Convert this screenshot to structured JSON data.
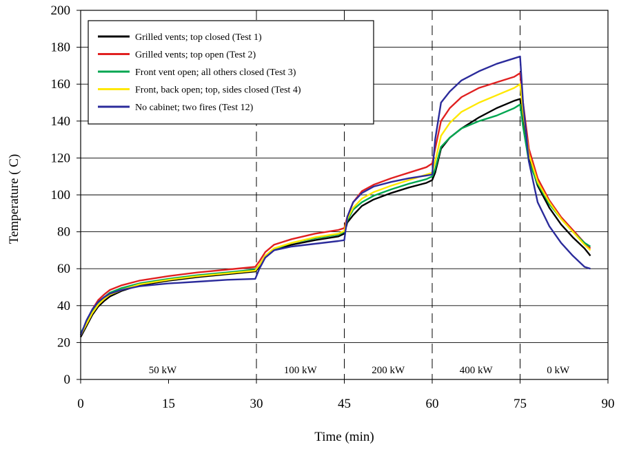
{
  "chart_data": {
    "type": "line",
    "title": "",
    "xlabel": "Time (min)",
    "ylabel": "Temperature ( C)",
    "xlim": [
      0,
      90
    ],
    "ylim": [
      0,
      200
    ],
    "xticks": [
      0,
      15,
      30,
      45,
      60,
      75,
      90
    ],
    "yticks": [
      0,
      20,
      40,
      60,
      80,
      100,
      120,
      140,
      160,
      180,
      200
    ],
    "grid": "horizontal",
    "legend": "top-left",
    "phase_dividers": [
      30,
      45,
      60,
      75
    ],
    "phase_labels": [
      {
        "text": "50 kW",
        "x": 14
      },
      {
        "text": "100 kW",
        "x": 37.5
      },
      {
        "text": "200 kW",
        "x": 52.5
      },
      {
        "text": "400 kW",
        "x": 67.5
      },
      {
        "text": "0 kW",
        "x": 81.5
      }
    ],
    "series": [
      {
        "name": "Grilled vents; top closed (Test 1)",
        "color": "#000000",
        "points": [
          [
            0,
            23
          ],
          [
            1,
            29
          ],
          [
            2,
            35
          ],
          [
            3,
            39.5
          ],
          [
            4,
            42.5
          ],
          [
            5,
            45
          ],
          [
            7,
            48
          ],
          [
            10,
            51
          ],
          [
            15,
            53.5
          ],
          [
            20,
            55.5
          ],
          [
            25,
            57
          ],
          [
            29.8,
            58.5
          ],
          [
            30.5,
            61
          ],
          [
            31.5,
            66
          ],
          [
            33,
            70
          ],
          [
            36,
            73
          ],
          [
            40,
            75.5
          ],
          [
            44,
            77.5
          ],
          [
            45,
            79
          ],
          [
            45.5,
            85
          ],
          [
            46.5,
            89
          ],
          [
            48,
            94
          ],
          [
            50,
            97.5
          ],
          [
            53,
            101
          ],
          [
            56,
            104
          ],
          [
            59,
            106.5
          ],
          [
            60,
            108
          ],
          [
            60.5,
            112
          ],
          [
            61.5,
            125
          ],
          [
            63,
            131
          ],
          [
            65,
            136
          ],
          [
            68,
            142
          ],
          [
            71,
            147
          ],
          [
            74,
            151
          ],
          [
            75,
            152
          ],
          [
            75.5,
            140
          ],
          [
            76.5,
            120
          ],
          [
            78,
            105
          ],
          [
            80,
            93
          ],
          [
            82,
            84
          ],
          [
            84,
            77
          ],
          [
            86,
            71
          ],
          [
            87,
            67
          ]
        ]
      },
      {
        "name": "Grilled vents; top open (Test 2)",
        "color": "#e02020",
        "points": [
          [
            0,
            24
          ],
          [
            1,
            31
          ],
          [
            2,
            38
          ],
          [
            3,
            43
          ],
          [
            4,
            46
          ],
          [
            5,
            48.5
          ],
          [
            7,
            51
          ],
          [
            10,
            53.5
          ],
          [
            15,
            56
          ],
          [
            20,
            58
          ],
          [
            25,
            59.5
          ],
          [
            29.8,
            61
          ],
          [
            30.5,
            64
          ],
          [
            31.5,
            69
          ],
          [
            33,
            73
          ],
          [
            36,
            76
          ],
          [
            40,
            79
          ],
          [
            44,
            81
          ],
          [
            45,
            82
          ],
          [
            45.5,
            88
          ],
          [
            46.5,
            96
          ],
          [
            48,
            102
          ],
          [
            50,
            105.5
          ],
          [
            53,
            109
          ],
          [
            56,
            112
          ],
          [
            59,
            115
          ],
          [
            60,
            117
          ],
          [
            60.5,
            125
          ],
          [
            61.5,
            140
          ],
          [
            63,
            147
          ],
          [
            65,
            153
          ],
          [
            68,
            158
          ],
          [
            71,
            161
          ],
          [
            74,
            164
          ],
          [
            75,
            166
          ],
          [
            75.5,
            150
          ],
          [
            76.5,
            125
          ],
          [
            78,
            109
          ],
          [
            80,
            97
          ],
          [
            82,
            88
          ],
          [
            84,
            81
          ],
          [
            86,
            74
          ],
          [
            87,
            71
          ]
        ]
      },
      {
        "name": "Front vent open; all others closed (Test 3)",
        "color": "#00a650",
        "points": [
          [
            0,
            25
          ],
          [
            1,
            31
          ],
          [
            2,
            37
          ],
          [
            3,
            41.5
          ],
          [
            4,
            44.5
          ],
          [
            5,
            47
          ],
          [
            7,
            49.5
          ],
          [
            10,
            52
          ],
          [
            15,
            54.5
          ],
          [
            20,
            56.5
          ],
          [
            25,
            58
          ],
          [
            29.8,
            59.5
          ],
          [
            30.5,
            62
          ],
          [
            31.5,
            67
          ],
          [
            33,
            70.5
          ],
          [
            36,
            74
          ],
          [
            40,
            76.5
          ],
          [
            44,
            78.5
          ],
          [
            45,
            80
          ],
          [
            45.5,
            86
          ],
          [
            46.5,
            92
          ],
          [
            48,
            96
          ],
          [
            50,
            99.5
          ],
          [
            53,
            103
          ],
          [
            56,
            106
          ],
          [
            59,
            108.5
          ],
          [
            60,
            110
          ],
          [
            60.5,
            114
          ],
          [
            61.5,
            126
          ],
          [
            63,
            131
          ],
          [
            65,
            136
          ],
          [
            68,
            140
          ],
          [
            71,
            143
          ],
          [
            74,
            147
          ],
          [
            75,
            149
          ],
          [
            75.5,
            137
          ],
          [
            76.5,
            118
          ],
          [
            78,
            106
          ],
          [
            80,
            95
          ],
          [
            82,
            87
          ],
          [
            84,
            80
          ],
          [
            86,
            74
          ],
          [
            87,
            72
          ]
        ]
      },
      {
        "name": "Front, back open; top, sides closed (Test 4)",
        "color": "#ffe800",
        "points": [
          [
            0,
            24
          ],
          [
            1,
            30
          ],
          [
            2,
            36
          ],
          [
            3,
            40.5
          ],
          [
            4,
            43.5
          ],
          [
            5,
            46
          ],
          [
            7,
            48.5
          ],
          [
            10,
            51.5
          ],
          [
            15,
            54
          ],
          [
            20,
            56
          ],
          [
            25,
            57.5
          ],
          [
            29.8,
            59
          ],
          [
            30.5,
            62
          ],
          [
            31.5,
            67
          ],
          [
            33,
            71
          ],
          [
            36,
            74
          ],
          [
            40,
            77
          ],
          [
            44,
            79
          ],
          [
            45,
            80.5
          ],
          [
            45.5,
            87
          ],
          [
            46.5,
            93
          ],
          [
            48,
            98
          ],
          [
            50,
            101.5
          ],
          [
            53,
            105
          ],
          [
            56,
            108
          ],
          [
            59,
            111
          ],
          [
            60,
            112
          ],
          [
            60.5,
            118
          ],
          [
            61.5,
            132
          ],
          [
            63,
            139
          ],
          [
            65,
            145
          ],
          [
            68,
            150
          ],
          [
            71,
            154
          ],
          [
            74,
            158
          ],
          [
            75,
            160
          ],
          [
            75.5,
            145
          ],
          [
            76.5,
            122
          ],
          [
            78,
            107
          ],
          [
            80,
            96
          ],
          [
            82,
            87
          ],
          [
            84,
            80
          ],
          [
            86,
            73
          ],
          [
            87,
            70
          ]
        ]
      },
      {
        "name": "No cabinet; two fires (Test 12)",
        "color": "#2b2b9b",
        "points": [
          [
            0,
            24
          ],
          [
            1,
            32
          ],
          [
            2,
            38
          ],
          [
            3,
            42
          ],
          [
            4,
            44.5
          ],
          [
            5,
            46.5
          ],
          [
            7,
            48.5
          ],
          [
            10,
            50.5
          ],
          [
            15,
            52
          ],
          [
            20,
            53
          ],
          [
            25,
            54
          ],
          [
            29.8,
            54.5
          ],
          [
            30.5,
            60
          ],
          [
            31.5,
            66
          ],
          [
            33,
            70
          ],
          [
            36,
            72
          ],
          [
            40,
            73.5
          ],
          [
            44,
            75
          ],
          [
            45,
            75.5
          ],
          [
            45.5,
            88
          ],
          [
            46.5,
            96
          ],
          [
            48,
            101
          ],
          [
            50,
            104.5
          ],
          [
            53,
            107
          ],
          [
            56,
            109
          ],
          [
            59,
            110.5
          ],
          [
            60,
            111
          ],
          [
            60.5,
            130
          ],
          [
            61.5,
            150
          ],
          [
            63,
            156
          ],
          [
            65,
            162
          ],
          [
            68,
            167
          ],
          [
            71,
            171
          ],
          [
            74,
            174
          ],
          [
            75,
            175
          ],
          [
            75.5,
            150
          ],
          [
            76.5,
            118
          ],
          [
            78,
            96
          ],
          [
            80,
            83
          ],
          [
            82,
            74
          ],
          [
            84,
            67
          ],
          [
            86,
            61
          ],
          [
            87,
            60
          ]
        ]
      }
    ]
  }
}
